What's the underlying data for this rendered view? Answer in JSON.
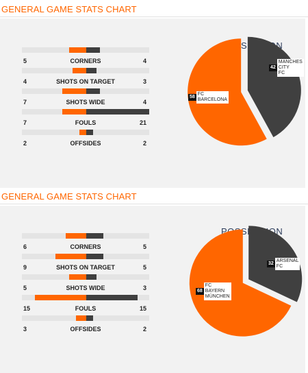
{
  "sections": [
    {
      "title": "GENERAL GAME STATS CHART",
      "possession_title": "POSSESSION",
      "stats": [
        {
          "name": "CORNERS",
          "home": 5,
          "away": 4
        },
        {
          "name": "SHOTS ON TARGET",
          "home": 4,
          "away": 3
        },
        {
          "name": "SHOTS WIDE",
          "home": 7,
          "away": 4
        },
        {
          "name": "FOULS",
          "home": 7,
          "away": 21
        },
        {
          "name": "OFFSIDES",
          "home": 2,
          "away": 2
        }
      ],
      "possession": [
        {
          "team": "FC\nBARCELONA",
          "value": 58,
          "color": "#ff6600"
        },
        {
          "team": "MANCHES\nCITY\nFC",
          "value": 42,
          "color": "#404040"
        }
      ]
    },
    {
      "title": "GENERAL GAME STATS CHART",
      "possession_title": "POSSESSION",
      "stats": [
        {
          "name": "CORNERS",
          "home": 6,
          "away": 5
        },
        {
          "name": "SHOTS ON TARGET",
          "home": 9,
          "away": 5
        },
        {
          "name": "SHOTS WIDE",
          "home": 5,
          "away": 3
        },
        {
          "name": "FOULS",
          "home": 15,
          "away": 15
        },
        {
          "name": "OFFSIDES",
          "home": 3,
          "away": 2
        }
      ],
      "possession": [
        {
          "team": "FC\nBAYERN\nMÜNCHEN",
          "value": 68,
          "color": "#ff6600"
        },
        {
          "team": "ARSENAL\nFC",
          "value": 32,
          "color": "#404040"
        }
      ]
    }
  ],
  "chart_data": [
    {
      "type": "bar",
      "title": "GENERAL GAME STATS CHART",
      "categories": [
        "CORNERS",
        "SHOTS ON TARGET",
        "SHOTS WIDE",
        "FOULS",
        "OFFSIDES"
      ],
      "series": [
        {
          "values": [
            5,
            4,
            7,
            7,
            2
          ]
        },
        {
          "values": [
            4,
            3,
            4,
            21,
            2
          ]
        }
      ]
    },
    {
      "type": "pie",
      "title": "POSSESSION",
      "categories": [
        "FC BARCELONA",
        "MANCHES CITY FC"
      ],
      "values": [
        58,
        42
      ]
    },
    {
      "type": "bar",
      "title": "GENERAL GAME STATS CHART",
      "categories": [
        "CORNERS",
        "SHOTS ON TARGET",
        "SHOTS WIDE",
        "FOULS",
        "OFFSIDES"
      ],
      "series": [
        {
          "values": [
            6,
            9,
            5,
            15,
            3
          ]
        },
        {
          "values": [
            5,
            5,
            3,
            15,
            2
          ]
        }
      ]
    },
    {
      "type": "pie",
      "title": "POSSESSION",
      "categories": [
        "FC BAYERN MÜNCHEN",
        "ARSENAL FC"
      ],
      "values": [
        68,
        32
      ]
    }
  ]
}
